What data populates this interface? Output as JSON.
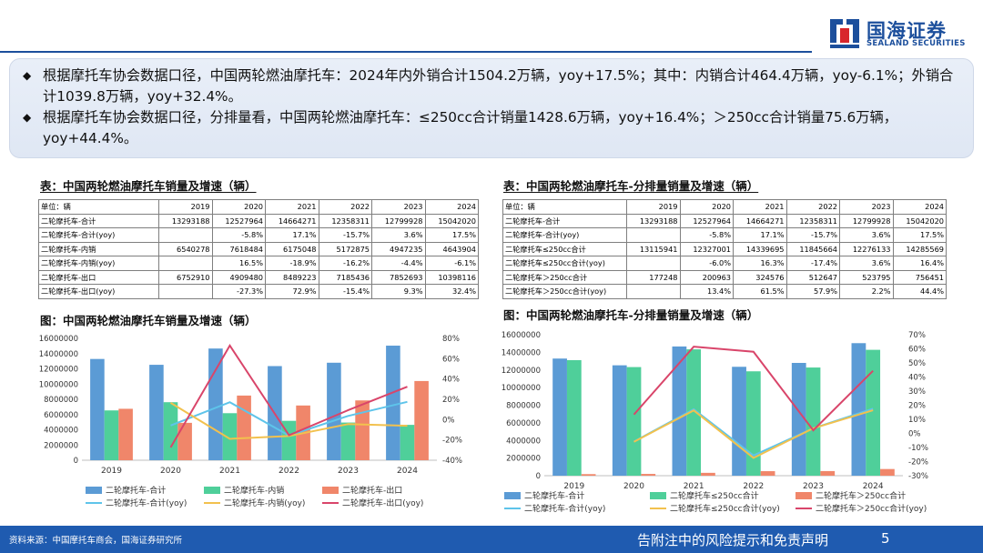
{
  "brand": {
    "name_cn": "国海证券",
    "name_en": "SEALAND SECURITIES"
  },
  "summary": [
    "根据摩托车协会数据口径，中国两轮燃油摩托车：2024年内外销合计1504.2万辆，yoy+17.5%；其中：内销合计464.4万辆，yoy-6.1%；外销合计1039.8万辆，yoy+32.4%。",
    "根据摩托车协会数据口径，分排量看，中国两轮燃油摩托车：≤250cc合计销量1428.6万辆，yoy+16.4%；＞250cc合计销量75.6万辆，yoy+44.4%。"
  ],
  "table1": {
    "title": "表：中国两轮燃油摩托车销量及增速（辆）",
    "header": [
      "单位：辆",
      "2019",
      "2020",
      "2021",
      "2022",
      "2023",
      "2024"
    ],
    "rows": [
      [
        "二轮摩托车-合计",
        "13293188",
        "12527964",
        "14664271",
        "12358311",
        "12799928",
        "15042020"
      ],
      [
        "二轮摩托车-合计(yoy)",
        "",
        "-5.8%",
        "17.1%",
        "-15.7%",
        "3.6%",
        "17.5%"
      ],
      [
        "二轮摩托车-内销",
        "6540278",
        "7618484",
        "6175048",
        "5172875",
        "4947235",
        "4643904"
      ],
      [
        "二轮摩托车-内销(yoy)",
        "",
        "16.5%",
        "-18.9%",
        "-16.2%",
        "-4.4%",
        "-6.1%"
      ],
      [
        "二轮摩托车-出口",
        "6752910",
        "4909480",
        "8489223",
        "7185436",
        "7852693",
        "10398116"
      ],
      [
        "二轮摩托车-出口(yoy)",
        "",
        "-27.3%",
        "72.9%",
        "-15.4%",
        "9.3%",
        "32.4%"
      ]
    ]
  },
  "table2": {
    "title": "表：中国两轮燃油摩托车-分排量销量及增速（辆）",
    "header": [
      "单位：辆",
      "2019",
      "2020",
      "2021",
      "2022",
      "2023",
      "2024"
    ],
    "rows": [
      [
        "二轮摩托车-合计",
        "13293188",
        "12527964",
        "14664271",
        "12358311",
        "12799928",
        "15042020"
      ],
      [
        "二轮摩托车-合计(yoy)",
        "",
        "-5.8%",
        "17.1%",
        "-15.7%",
        "3.6%",
        "17.5%"
      ],
      [
        "二轮摩托车≤250cc合计",
        "13115941",
        "12327001",
        "14339695",
        "11845664",
        "12276133",
        "14285569"
      ],
      [
        "二轮摩托车≤250cc合计(yoy)",
        "",
        "-6.0%",
        "16.3%",
        "-17.4%",
        "3.6%",
        "16.4%"
      ],
      [
        "二轮摩托车＞250cc合计",
        "177248",
        "200963",
        "324576",
        "512647",
        "523795",
        "756451"
      ],
      [
        "二轮摩托车＞250cc合计(yoy)",
        "",
        "13.4%",
        "61.5%",
        "57.9%",
        "2.2%",
        "44.4%"
      ]
    ]
  },
  "chart_data": [
    {
      "type": "bar",
      "title": "图：中国两轮燃油摩托车销量及增速（辆）",
      "categories": [
        "2019",
        "2020",
        "2021",
        "2022",
        "2023",
        "2024"
      ],
      "ylim": [
        0,
        16000000
      ],
      "yticks": [
        "0",
        "2000000",
        "4000000",
        "6000000",
        "8000000",
        "10000000",
        "12000000",
        "14000000",
        "16000000"
      ],
      "y2lim": [
        -40,
        80
      ],
      "y2ticks": [
        "-40%",
        "-20%",
        "0%",
        "20%",
        "40%",
        "60%",
        "80%"
      ],
      "series": [
        {
          "name": "二轮摩托车-合计",
          "kind": "bar",
          "color": "#5b9bd5",
          "values": [
            13293188,
            12527964,
            14664271,
            12358311,
            12799928,
            15042020
          ]
        },
        {
          "name": "二轮摩托车-内销",
          "kind": "bar",
          "color": "#4fcf9a",
          "values": [
            6540278,
            7618484,
            6175048,
            5172875,
            4947235,
            4643904
          ]
        },
        {
          "name": "二轮摩托车-出口",
          "kind": "bar",
          "color": "#f0866a",
          "values": [
            6752910,
            4909480,
            8489223,
            7185436,
            7852693,
            10398116
          ]
        },
        {
          "name": "二轮摩托车-合计(yoy)",
          "kind": "line",
          "color": "#5ec4ea",
          "values": [
            null,
            -5.8,
            17.1,
            -15.7,
            3.6,
            17.5
          ]
        },
        {
          "name": "二轮摩托车-内销(yoy)",
          "kind": "line",
          "color": "#f2c14e",
          "values": [
            null,
            16.5,
            -18.9,
            -16.2,
            -4.4,
            -6.1
          ]
        },
        {
          "name": "二轮摩托车-出口(yoy)",
          "kind": "line",
          "color": "#d9456a",
          "values": [
            null,
            -27.3,
            72.9,
            -15.4,
            9.3,
            32.4
          ]
        }
      ]
    },
    {
      "type": "bar",
      "title": "图：中国两轮燃油摩托车-分排量销量及增速（辆）",
      "categories": [
        "2019",
        "2020",
        "2021",
        "2022",
        "2023",
        "2024"
      ],
      "ylim": [
        0,
        16000000
      ],
      "yticks": [
        "0",
        "2000000",
        "4000000",
        "6000000",
        "8000000",
        "10000000",
        "12000000",
        "14000000",
        "16000000"
      ],
      "y2lim": [
        -30,
        70
      ],
      "y2ticks": [
        "-30%",
        "-20%",
        "-10%",
        "0%",
        "10%",
        "20%",
        "30%",
        "40%",
        "50%",
        "60%",
        "70%"
      ],
      "series": [
        {
          "name": "二轮摩托车-合计",
          "kind": "bar",
          "color": "#5b9bd5",
          "values": [
            13293188,
            12527964,
            14664271,
            12358311,
            12799928,
            15042020
          ]
        },
        {
          "name": "二轮摩托车≤250cc合计",
          "kind": "bar",
          "color": "#4fcf9a",
          "values": [
            13115941,
            12327001,
            14339695,
            11845664,
            12276133,
            14285569
          ]
        },
        {
          "name": "二轮摩托车＞250cc合计",
          "kind": "bar",
          "color": "#f0866a",
          "values": [
            177248,
            200963,
            324576,
            512647,
            523795,
            756451
          ]
        },
        {
          "name": "二轮摩托车-合计(yoy)",
          "kind": "line",
          "color": "#5ec4ea",
          "values": [
            null,
            -5.8,
            17.1,
            -15.7,
            3.6,
            17.5
          ]
        },
        {
          "name": "二轮摩托车≤250cc合计(yoy)",
          "kind": "line",
          "color": "#f2c14e",
          "values": [
            null,
            -6.0,
            16.3,
            -17.4,
            3.6,
            16.4
          ]
        },
        {
          "name": "二轮摩托车＞250cc合计(yoy)",
          "kind": "line",
          "color": "#d9456a",
          "values": [
            null,
            13.4,
            61.5,
            57.9,
            2.2,
            44.4
          ]
        }
      ]
    }
  ],
  "footer": {
    "source": "资料来源：中国摩托车商会，国海证券研究所",
    "disclaimer": "告附注中的风险提示和免责声明",
    "page": "5"
  }
}
